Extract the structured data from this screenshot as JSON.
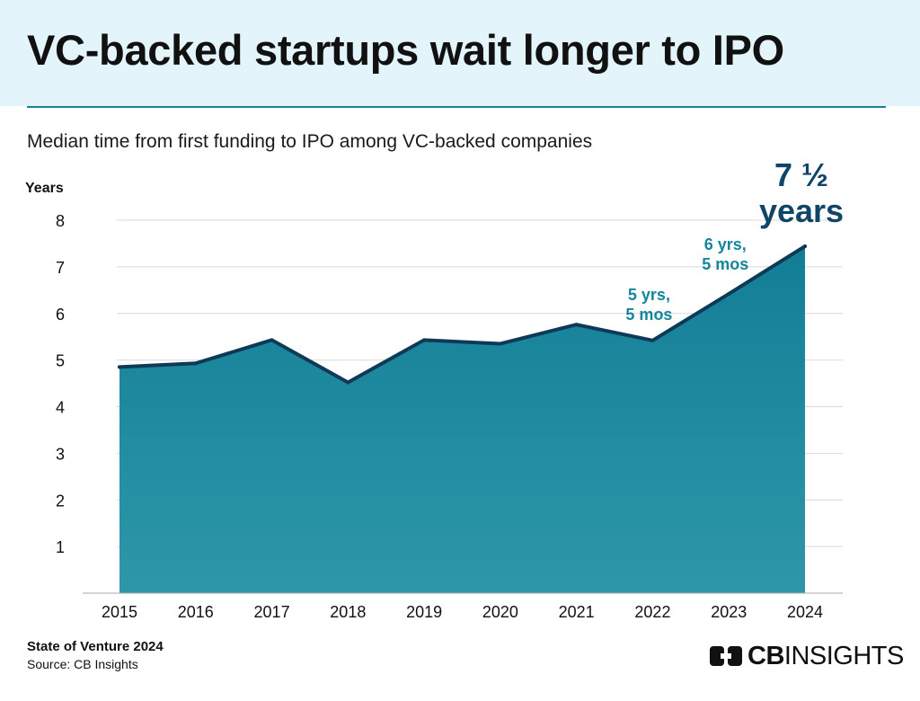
{
  "header": {
    "title": "VC-backed startups wait longer to IPO",
    "subtitle": "Median time from first funding to IPO among VC-backed companies"
  },
  "chart_data": {
    "type": "area",
    "title": "VC-backed startups wait longer to IPO",
    "subtitle": "Median time from first funding to IPO among VC-backed companies",
    "ylabel": "Years",
    "xlabel": "",
    "ylim": [
      0,
      8
    ],
    "yticks": [
      1,
      2,
      3,
      4,
      5,
      6,
      7,
      8
    ],
    "grid": true,
    "categories": [
      "2015",
      "2016",
      "2017",
      "2018",
      "2019",
      "2020",
      "2021",
      "2022",
      "2023",
      "2024"
    ],
    "values": [
      4.85,
      4.93,
      5.43,
      4.52,
      5.43,
      5.35,
      5.76,
      5.42,
      6.42,
      7.44
    ],
    "annotations": [
      {
        "index": 7,
        "lines": [
          "5 yrs,",
          "5 mos"
        ]
      },
      {
        "index": 8,
        "lines": [
          "6 yrs,",
          "5 mos"
        ]
      },
      {
        "index": 9,
        "lines": [
          "7 ½",
          "years"
        ],
        "emphasis": true
      }
    ],
    "colors": {
      "area_top": "#127e96",
      "area_bottom": "#2e97a9",
      "line": "#0f3a57",
      "annotation": "#13869b",
      "annotation_emphasis": "#0f4566",
      "grid": "#d9d9d9"
    }
  },
  "footer": {
    "report": "State of Venture 2024",
    "source": "Source: CB Insights"
  },
  "logo": {
    "bold": "CB",
    "regular": "INSIGHTS",
    "icon": "cb-insights-logo-icon"
  }
}
